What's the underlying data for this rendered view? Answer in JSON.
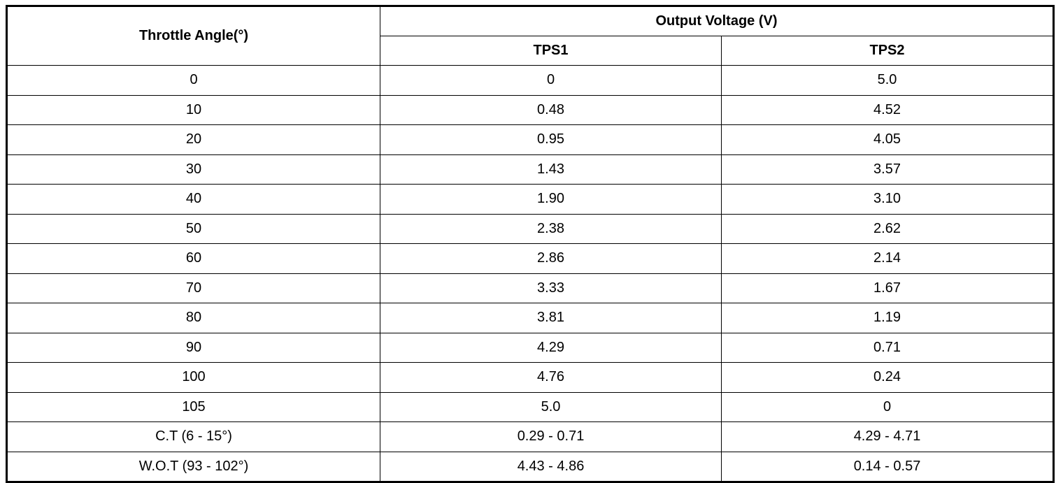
{
  "table": {
    "header": {
      "angle": "Throttle Angle(°)",
      "group": "Output Voltage (V)",
      "columns": [
        "TPS1",
        "TPS2"
      ]
    },
    "rows": [
      [
        "0",
        "0",
        "5.0"
      ],
      [
        "10",
        "0.48",
        "4.52"
      ],
      [
        "20",
        "0.95",
        "4.05"
      ],
      [
        "30",
        "1.43",
        "3.57"
      ],
      [
        "40",
        "1.90",
        "3.10"
      ],
      [
        "50",
        "2.38",
        "2.62"
      ],
      [
        "60",
        "2.86",
        "2.14"
      ],
      [
        "70",
        "3.33",
        "1.67"
      ],
      [
        "80",
        "3.81",
        "1.19"
      ],
      [
        "90",
        "4.29",
        "0.71"
      ],
      [
        "100",
        "4.76",
        "0.24"
      ],
      [
        "105",
        "5.0",
        "0"
      ],
      [
        "C.T (6 - 15°)",
        "0.29 - 0.71",
        "4.29 - 4.71"
      ],
      [
        "W.O.T (93 - 102°)",
        "4.43 - 4.86",
        "0.14 - 0.57"
      ]
    ]
  }
}
